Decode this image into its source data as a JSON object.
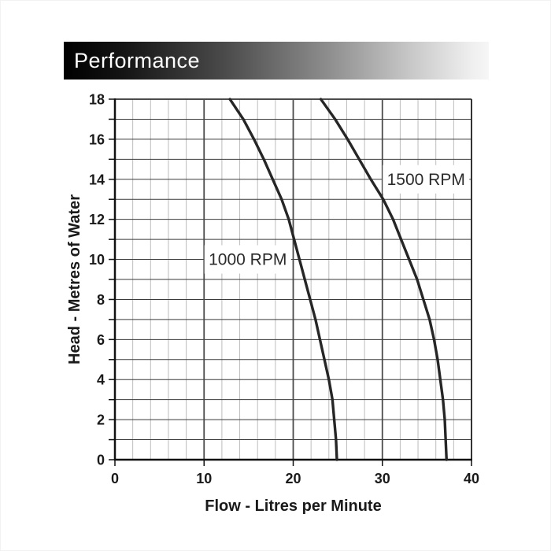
{
  "banner": {
    "title": "Performance"
  },
  "chart_data": {
    "type": "line",
    "title": "Performance",
    "xlabel": "Flow - Litres per Minute",
    "ylabel": "Head - Metres of Water",
    "xlim": [
      0,
      40
    ],
    "ylim": [
      0,
      18
    ],
    "x_tick_labels": [
      0,
      10,
      20,
      30,
      40
    ],
    "y_tick_labels": [
      0,
      2,
      4,
      6,
      8,
      10,
      12,
      14,
      16,
      18
    ],
    "x_minor_grid_step": 2,
    "x_major_grid_step": 10,
    "y_grid_step": 1,
    "y_tick_step": 1,
    "grid": true,
    "legend_position": "inline-curve-labels",
    "series": [
      {
        "name": "1000 RPM",
        "label_x": 14.9,
        "label_y": 10,
        "points": [
          [
            12.9,
            18
          ],
          [
            14.4,
            17
          ],
          [
            15.6,
            16
          ],
          [
            16.7,
            15
          ],
          [
            17.7,
            14
          ],
          [
            18.7,
            13
          ],
          [
            19.5,
            12
          ],
          [
            20.1,
            11
          ],
          [
            20.7,
            10
          ],
          [
            21.3,
            9
          ],
          [
            21.9,
            8
          ],
          [
            22.5,
            7
          ],
          [
            23.0,
            6
          ],
          [
            23.5,
            5
          ],
          [
            24.0,
            4
          ],
          [
            24.4,
            3
          ],
          [
            24.6,
            2
          ],
          [
            24.8,
            1
          ],
          [
            24.9,
            0
          ]
        ]
      },
      {
        "name": "1500 RPM",
        "label_x": 34.9,
        "label_y": 14,
        "points": [
          [
            23.1,
            18
          ],
          [
            24.7,
            17
          ],
          [
            26.1,
            16
          ],
          [
            27.4,
            15
          ],
          [
            28.7,
            14
          ],
          [
            30.1,
            13
          ],
          [
            31.2,
            12
          ],
          [
            32.1,
            11
          ],
          [
            33.0,
            10
          ],
          [
            33.9,
            9
          ],
          [
            34.6,
            8
          ],
          [
            35.3,
            7
          ],
          [
            35.8,
            6
          ],
          [
            36.2,
            5
          ],
          [
            36.5,
            4
          ],
          [
            36.8,
            3
          ],
          [
            37.0,
            2
          ],
          [
            37.1,
            1
          ],
          [
            37.2,
            0
          ]
        ]
      }
    ],
    "colors": {
      "curve": "#262626",
      "grid_minor": "#bcbcbc",
      "grid_major": "#4a4a4a",
      "grid_horizontal": "#3a3a3a",
      "axis": "#111111",
      "text": "#1a1a1a",
      "banner_left": "#000000",
      "banner_right": "#f6f6f6"
    }
  }
}
